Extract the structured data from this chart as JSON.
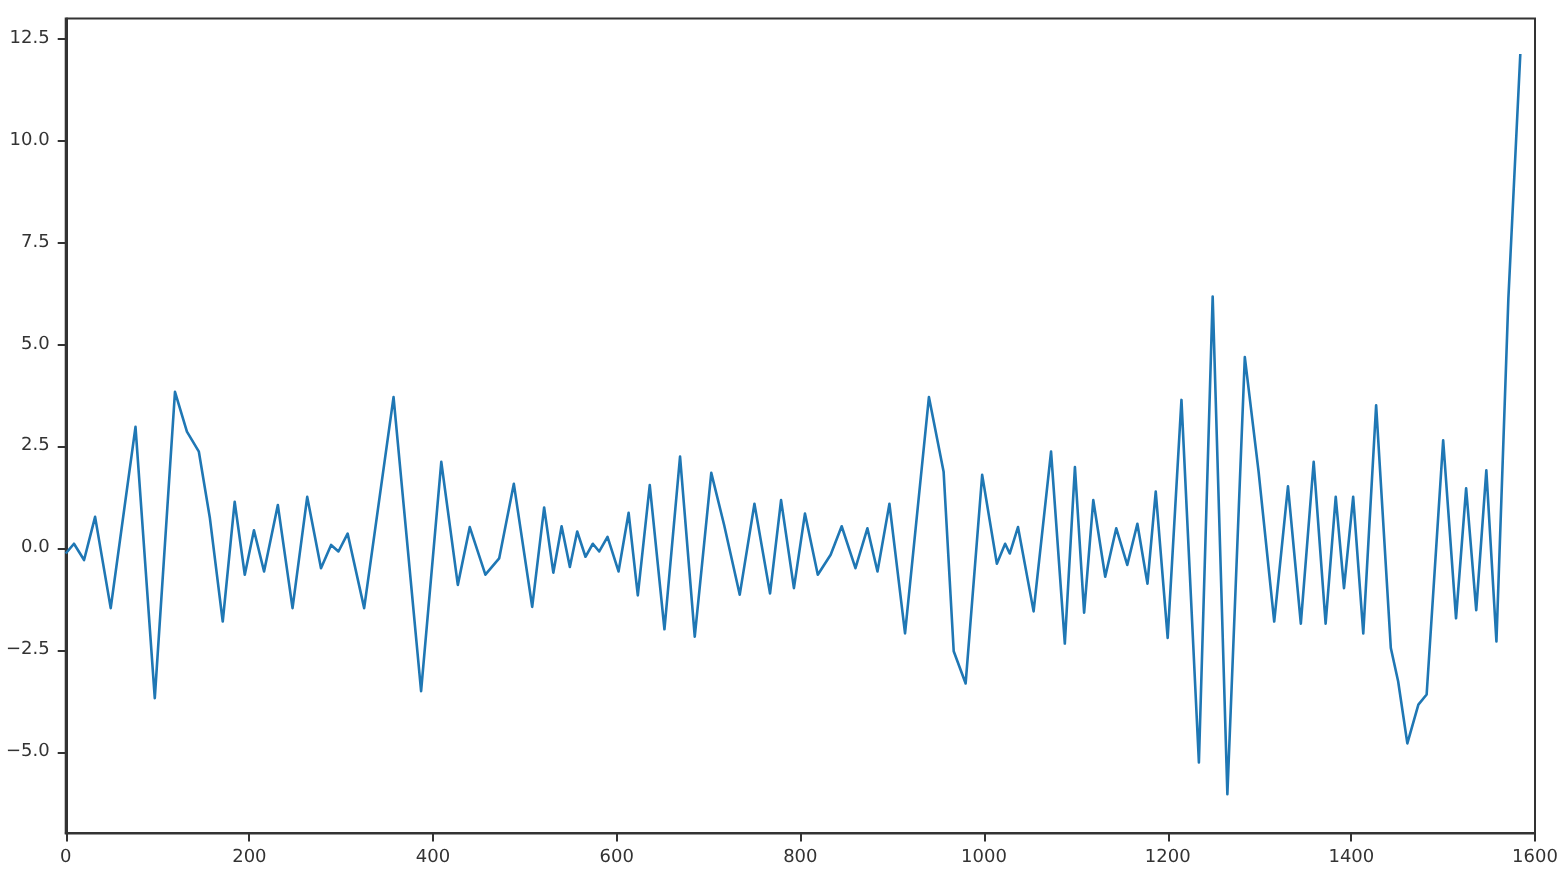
{
  "chart_data": {
    "type": "line",
    "x": [
      0,
      9,
      20,
      32,
      49,
      76,
      97,
      119,
      132,
      145,
      157,
      171,
      184,
      195,
      205,
      216,
      231,
      247,
      263,
      278,
      289,
      297,
      307,
      325,
      357,
      387,
      409,
      427,
      440,
      457,
      472,
      488,
      508,
      521,
      531,
      540,
      549,
      557,
      566,
      574,
      581,
      590,
      602,
      613,
      623,
      636,
      652,
      669,
      685,
      703,
      717,
      734,
      750,
      767,
      779,
      793,
      805,
      819,
      833,
      845,
      860,
      873,
      884,
      897,
      914,
      940,
      956,
      967,
      980,
      998,
      1014,
      1023,
      1028,
      1037,
      1054,
      1073,
      1088,
      1099,
      1109,
      1119,
      1132,
      1144,
      1156,
      1167,
      1178,
      1187,
      1200,
      1215,
      1234,
      1249,
      1265,
      1284,
      1299,
      1316,
      1331,
      1345,
      1359,
      1372,
      1383,
      1392,
      1402,
      1413,
      1427,
      1443,
      1451,
      1461,
      1473,
      1482,
      1500,
      1514,
      1525,
      1536,
      1547,
      1558,
      1571,
      1584
    ],
    "series": [
      {
        "color": "#1f77b4",
        "values": [
          -0.13,
          0.11,
          -0.29,
          0.77,
          -1.47,
          2.98,
          -3.68,
          3.84,
          2.86,
          2.37,
          0.74,
          -1.8,
          1.14,
          -0.65,
          0.44,
          -0.57,
          1.06,
          -1.47,
          1.26,
          -0.49,
          0.08,
          -0.08,
          0.36,
          -1.47,
          3.71,
          -3.51,
          2.12,
          -0.9,
          0.52,
          -0.65,
          -0.25,
          1.58,
          -1.44,
          1.0,
          -0.6,
          0.54,
          -0.46,
          0.41,
          -0.21,
          0.11,
          -0.08,
          0.28,
          -0.57,
          0.87,
          -1.16,
          1.55,
          -1.99,
          2.25,
          -2.17,
          1.85,
          0.57,
          -1.14,
          1.09,
          -1.11,
          1.18,
          -0.98,
          0.85,
          -0.65,
          -0.16,
          0.54,
          -0.49,
          0.49,
          -0.57,
          1.09,
          -2.09,
          3.71,
          1.88,
          -2.53,
          -3.32,
          1.8,
          -0.38,
          0.11,
          -0.13,
          0.52,
          -1.55,
          2.37,
          -2.34,
          1.99,
          -1.58,
          1.18,
          -0.7,
          0.49,
          -0.41,
          0.6,
          -0.87,
          1.39,
          -2.2,
          3.64,
          -5.26,
          6.18,
          -6.04,
          4.69,
          1.88,
          -1.8,
          1.52,
          -1.85,
          2.12,
          -1.85,
          1.26,
          -0.98,
          1.26,
          -2.09,
          3.51,
          -2.45,
          -3.27,
          -4.79,
          -3.84,
          -3.59,
          2.65,
          -1.72,
          1.47,
          -1.52,
          1.91,
          -2.29,
          6.13,
          12.13
        ]
      }
    ],
    "xlim": [
      0,
      1600
    ],
    "xticks": [
      0,
      200,
      400,
      600,
      800,
      1000,
      1200,
      1400,
      1600
    ],
    "ylim": [
      -7,
      13
    ],
    "yticks": [
      {
        "value": -5,
        "label": "−5.0"
      },
      {
        "value": -2.5,
        "label": "−2.5"
      },
      {
        "value": 0,
        "label": "0.0"
      },
      {
        "value": 2.5,
        "label": "2.5"
      },
      {
        "value": 5,
        "label": "5.0"
      },
      {
        "value": 7.5,
        "label": "7.5"
      },
      {
        "value": 10,
        "label": "10.0"
      },
      {
        "value": 12.5,
        "label": "12.5"
      }
    ]
  }
}
